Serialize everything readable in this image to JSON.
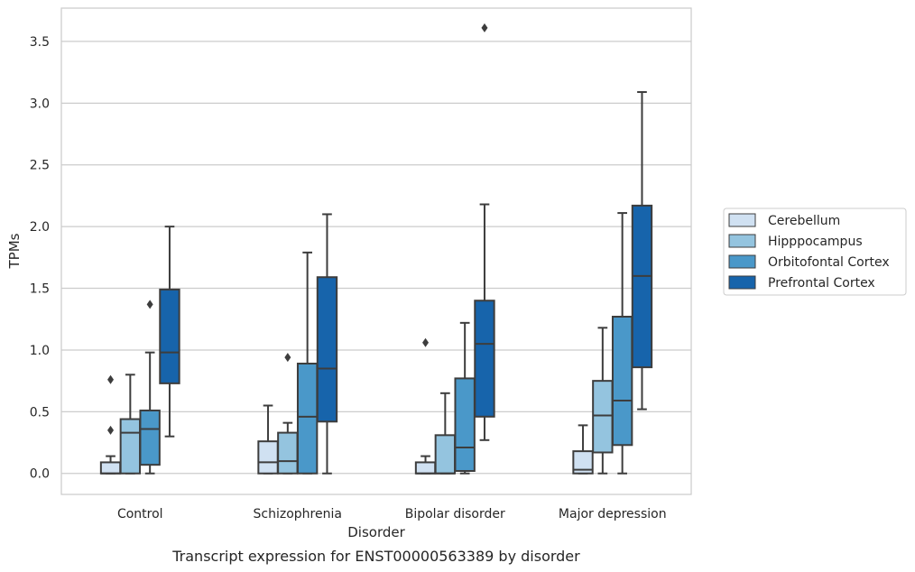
{
  "caption": "Transcript expression for ENST00000563389 by disorder",
  "chart_data": {
    "type": "box",
    "title": "",
    "xlabel": "Disorder",
    "ylabel": "TPMs",
    "ylim": [
      -0.17,
      3.77
    ],
    "yticks": [
      "0.0",
      "0.5",
      "1.0",
      "1.5",
      "2.0",
      "2.5",
      "3.0",
      "3.5"
    ],
    "ytick_values": [
      0.0,
      0.5,
      1.0,
      1.5,
      2.0,
      2.5,
      3.0,
      3.5
    ],
    "grid": "horizontal",
    "legend_position": "right",
    "categories": [
      "Control",
      "Schizophrenia",
      "Bipolar disorder",
      "Major depression"
    ],
    "series": [
      {
        "name": "Cerebellum",
        "color": "#d0e1f2",
        "boxes": [
          {
            "whislo": 0.0,
            "q1": 0.0,
            "med": 0.0,
            "q3": 0.09,
            "whishi": 0.14,
            "fliers": [
              0.35,
              0.76
            ]
          },
          {
            "whislo": 0.0,
            "q1": 0.0,
            "med": 0.09,
            "q3": 0.26,
            "whishi": 0.55,
            "fliers": []
          },
          {
            "whislo": 0.0,
            "q1": 0.0,
            "med": 0.0,
            "q3": 0.09,
            "whishi": 0.14,
            "fliers": [
              1.06
            ]
          },
          {
            "whislo": 0.0,
            "q1": 0.0,
            "med": 0.03,
            "q3": 0.18,
            "whishi": 0.39,
            "fliers": []
          }
        ]
      },
      {
        "name": "Hipppocampus",
        "color": "#94c4df",
        "boxes": [
          {
            "whislo": 0.0,
            "q1": 0.0,
            "med": 0.33,
            "q3": 0.44,
            "whishi": 0.8,
            "fliers": []
          },
          {
            "whislo": 0.0,
            "q1": 0.0,
            "med": 0.1,
            "q3": 0.33,
            "whishi": 0.41,
            "fliers": [
              0.94
            ]
          },
          {
            "whislo": 0.0,
            "q1": 0.0,
            "med": 0.0,
            "q3": 0.31,
            "whishi": 0.65,
            "fliers": []
          },
          {
            "whislo": 0.0,
            "q1": 0.17,
            "med": 0.47,
            "q3": 0.75,
            "whishi": 1.18,
            "fliers": []
          }
        ]
      },
      {
        "name": "Orbitofontal Cortex",
        "color": "#4a98c9",
        "boxes": [
          {
            "whislo": 0.0,
            "q1": 0.07,
            "med": 0.36,
            "q3": 0.51,
            "whishi": 0.98,
            "fliers": [
              1.37
            ]
          },
          {
            "whislo": 0.0,
            "q1": 0.0,
            "med": 0.46,
            "q3": 0.89,
            "whishi": 1.79,
            "fliers": []
          },
          {
            "whislo": 0.0,
            "q1": 0.02,
            "med": 0.21,
            "q3": 0.77,
            "whishi": 1.22,
            "fliers": []
          },
          {
            "whislo": 0.0,
            "q1": 0.23,
            "med": 0.59,
            "q3": 1.27,
            "whishi": 2.11,
            "fliers": []
          }
        ]
      },
      {
        "name": "Prefrontal Cortex",
        "color": "#1764ab",
        "boxes": [
          {
            "whislo": 0.3,
            "q1": 0.73,
            "med": 0.98,
            "q3": 1.49,
            "whishi": 2.0,
            "fliers": []
          },
          {
            "whislo": 0.0,
            "q1": 0.42,
            "med": 0.85,
            "q3": 1.59,
            "whishi": 2.1,
            "fliers": []
          },
          {
            "whislo": 0.27,
            "q1": 0.46,
            "med": 1.05,
            "q3": 1.4,
            "whishi": 2.18,
            "fliers": [
              3.61
            ]
          },
          {
            "whislo": 0.52,
            "q1": 0.86,
            "med": 1.6,
            "q3": 2.17,
            "whishi": 3.09,
            "fliers": []
          }
        ]
      }
    ]
  }
}
